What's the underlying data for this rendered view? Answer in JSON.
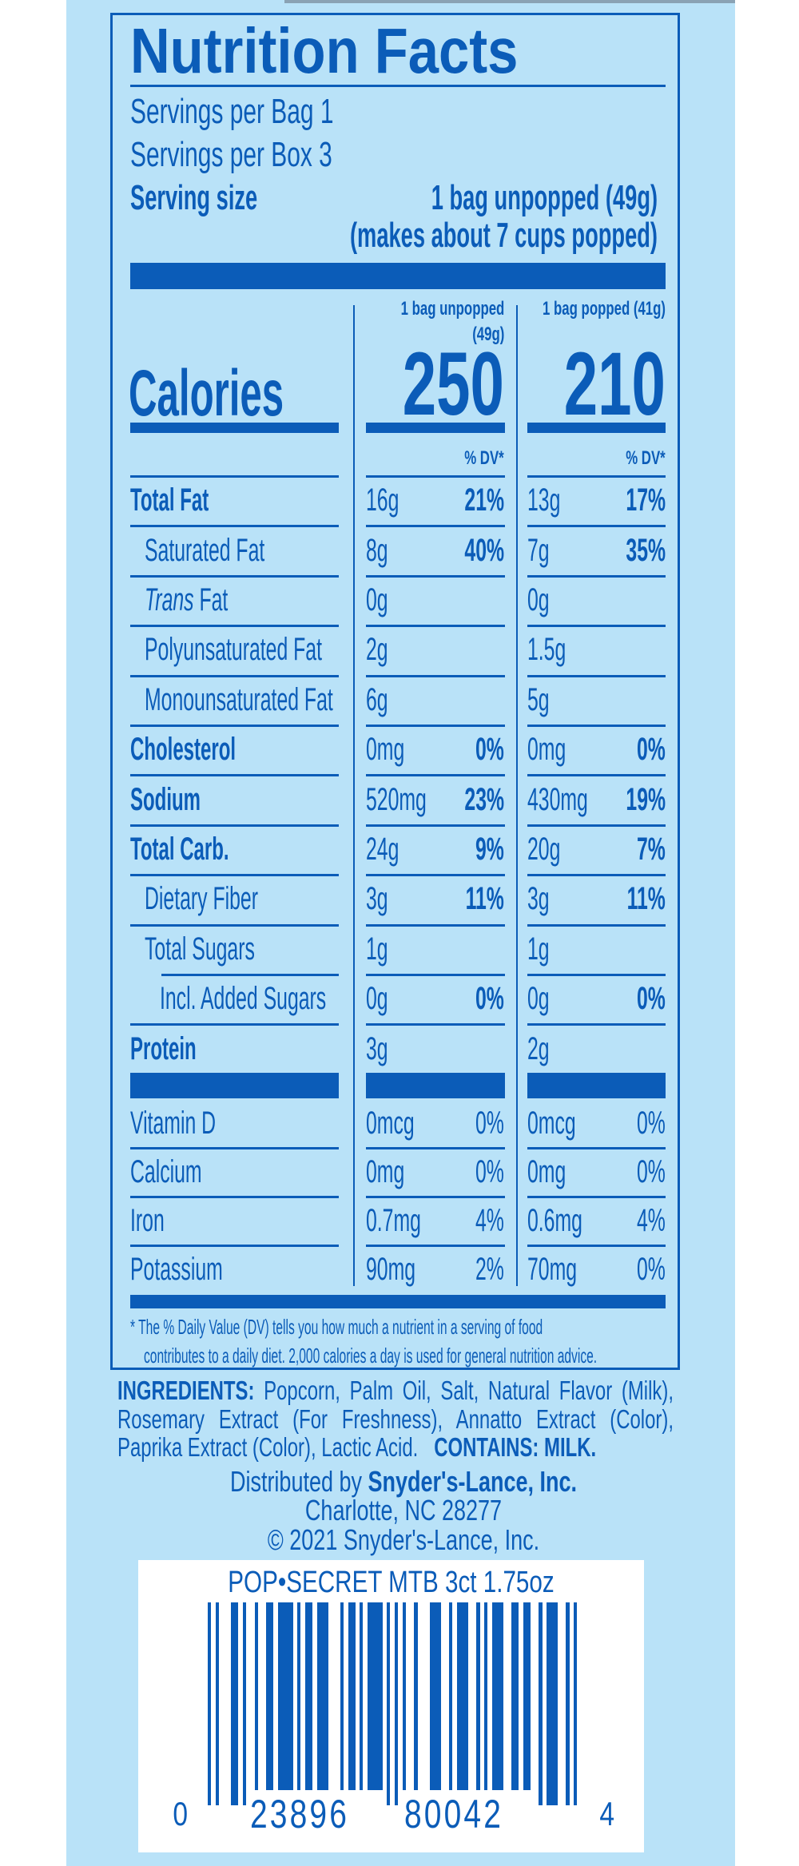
{
  "colors": {
    "background": "#b9e2f8",
    "ink": "#0b5cb8"
  },
  "title": "Nutrition Facts",
  "servings_per_bag": "Servings per Bag 1",
  "servings_per_box": "Servings per Box 3",
  "serving_size": {
    "label": "Serving size",
    "value": "1 bag unpopped (49g)",
    "note": "(makes about 7 cups popped)"
  },
  "columns": {
    "unpopped_header_1": "1 bag unpopped",
    "unpopped_header_2": "(49g)",
    "popped_header": "1 bag popped (41g)",
    "dv_label": "% DV*"
  },
  "calories": {
    "label": "Calories",
    "unpopped": "250",
    "popped": "210"
  },
  "nutrients": [
    {
      "label": "Total Fat",
      "bold": true,
      "indent": 0,
      "unpopped": "16g",
      "unpopped_dv": "21%",
      "popped": "13g",
      "popped_dv": "17%"
    },
    {
      "label": "Saturated Fat",
      "bold": false,
      "indent": 1,
      "unpopped": "8g",
      "unpopped_dv": "40%",
      "popped": "7g",
      "popped_dv": "35%"
    },
    {
      "label_italic": "Trans",
      "label": " Fat",
      "bold": false,
      "indent": 1,
      "unpopped": "0g",
      "unpopped_dv": "",
      "popped": "0g",
      "popped_dv": ""
    },
    {
      "label": "Polyunsaturated Fat",
      "bold": false,
      "indent": 1,
      "unpopped": "2g",
      "unpopped_dv": "",
      "popped": "1.5g",
      "popped_dv": ""
    },
    {
      "label": "Monounsaturated Fat",
      "bold": false,
      "indent": 1,
      "unpopped": "6g",
      "unpopped_dv": "",
      "popped": "5g",
      "popped_dv": ""
    },
    {
      "label": "Cholesterol",
      "bold": true,
      "indent": 0,
      "unpopped": "0mg",
      "unpopped_dv": "0%",
      "popped": "0mg",
      "popped_dv": "0%"
    },
    {
      "label": "Sodium",
      "bold": true,
      "indent": 0,
      "unpopped": "520mg",
      "unpopped_dv": "23%",
      "popped": "430mg",
      "popped_dv": "19%"
    },
    {
      "label": "Total Carb.",
      "bold": true,
      "indent": 0,
      "unpopped": "24g",
      "unpopped_dv": "9%",
      "popped": "20g",
      "popped_dv": "7%"
    },
    {
      "label": "Dietary Fiber",
      "bold": false,
      "indent": 1,
      "unpopped": "3g",
      "unpopped_dv": "11%",
      "popped": "3g",
      "popped_dv": "11%"
    },
    {
      "label": "Total Sugars",
      "bold": false,
      "indent": 1,
      "unpopped": "1g",
      "unpopped_dv": "",
      "popped": "1g",
      "popped_dv": ""
    },
    {
      "label": "Incl. Added Sugars",
      "bold": false,
      "indent": 2,
      "unpopped": "0g",
      "unpopped_dv": "0%",
      "popped": "0g",
      "popped_dv": "0%"
    },
    {
      "label": "Protein",
      "bold": true,
      "indent": 0,
      "unpopped": "3g",
      "unpopped_dv": "",
      "popped": "2g",
      "popped_dv": ""
    }
  ],
  "vitamins": [
    {
      "label": "Vitamin D",
      "unpopped": "0mcg",
      "unpopped_dv": "0%",
      "popped": "0mcg",
      "popped_dv": "0%"
    },
    {
      "label": "Calcium",
      "unpopped": "0mg",
      "unpopped_dv": "0%",
      "popped": "0mg",
      "popped_dv": "0%"
    },
    {
      "label": "Iron",
      "unpopped": "0.7mg",
      "unpopped_dv": "4%",
      "popped": "0.6mg",
      "popped_dv": "4%"
    },
    {
      "label": "Potassium",
      "unpopped": "90mg",
      "unpopped_dv": "2%",
      "popped": "70mg",
      "popped_dv": "0%"
    }
  ],
  "footnote": {
    "line1": "* The % Daily Value (DV) tells you how much a nutrient in a serving of food",
    "line2": "contributes to a daily diet. 2,000 calories a day is used for general nutrition advice."
  },
  "ingredients": {
    "heading": "INGREDIENTS:",
    "line1": " Popcorn, Palm Oil, Salt, Natural Flavor (Milk),",
    "line2": "Rosemary Extract (For Freshness), Annatto Extract (Color),",
    "line3": "Paprika Extract (Color), Lactic Acid.",
    "contains": "CONTAINS: MILK."
  },
  "distributor": {
    "prefix": "Distributed by ",
    "name": "Snyder's-Lance, Inc.",
    "address": "Charlotte, NC 28277",
    "copyright": "© 2021 Snyder's-Lance, Inc."
  },
  "barcode": {
    "product_text": "POP•SECRET MTB 3ct 1.75oz",
    "upc": "023896800424",
    "digit_first": "0",
    "digits_left": "23896",
    "digits_right": "80042",
    "digit_last": "4"
  }
}
